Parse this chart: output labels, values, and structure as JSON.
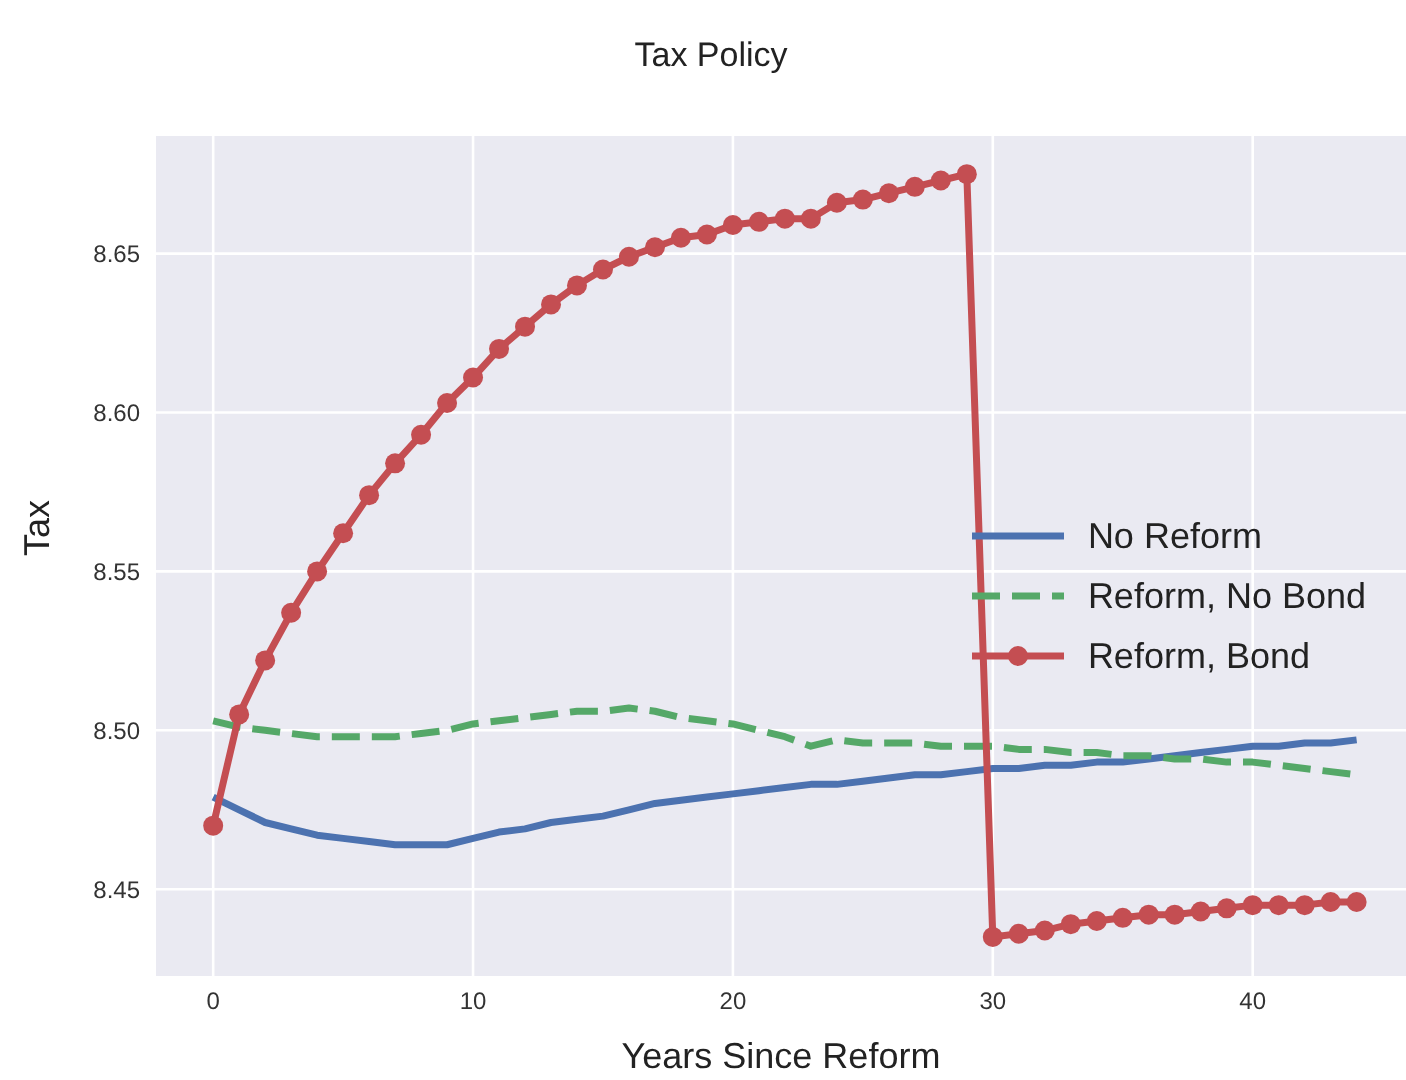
{
  "chart_data": {
    "type": "line",
    "title": "Tax Policy",
    "xlabel": "Years Since Reform",
    "ylabel": "Tax",
    "x": [
      0,
      1,
      2,
      3,
      4,
      5,
      6,
      7,
      8,
      9,
      10,
      11,
      12,
      13,
      14,
      15,
      16,
      17,
      18,
      19,
      20,
      21,
      22,
      23,
      24,
      25,
      26,
      27,
      28,
      29,
      30,
      31,
      32,
      33,
      34,
      35,
      36,
      37,
      38,
      39,
      40,
      41,
      42,
      43,
      44
    ],
    "series": [
      {
        "name": "No Reform",
        "color": "#4c72b0",
        "marker": "none",
        "line_style": "solid",
        "values": [
          8.479,
          8.475,
          8.471,
          8.469,
          8.467,
          8.466,
          8.465,
          8.464,
          8.464,
          8.464,
          8.466,
          8.468,
          8.469,
          8.471,
          8.472,
          8.473,
          8.475,
          8.477,
          8.478,
          8.479,
          8.48,
          8.481,
          8.482,
          8.483,
          8.483,
          8.484,
          8.485,
          8.486,
          8.486,
          8.487,
          8.488,
          8.488,
          8.489,
          8.489,
          8.49,
          8.49,
          8.491,
          8.492,
          8.493,
          8.494,
          8.495,
          8.495,
          8.496,
          8.496,
          8.497
        ]
      },
      {
        "name": "Reform, No Bond",
        "color": "#55a868",
        "marker": "none",
        "line_style": "dashed",
        "values": [
          8.503,
          8.501,
          8.5,
          8.499,
          8.498,
          8.498,
          8.498,
          8.498,
          8.499,
          8.5,
          8.502,
          8.503,
          8.504,
          8.505,
          8.506,
          8.506,
          8.507,
          8.506,
          8.504,
          8.503,
          8.502,
          8.5,
          8.498,
          8.495,
          8.497,
          8.496,
          8.496,
          8.496,
          8.495,
          8.495,
          8.495,
          8.494,
          8.494,
          8.493,
          8.493,
          8.492,
          8.492,
          8.491,
          8.491,
          8.49,
          8.49,
          8.489,
          8.488,
          8.487,
          8.486
        ]
      },
      {
        "name": "Reform, Bond",
        "color": "#c44e52",
        "marker": "circle",
        "line_style": "solid",
        "values": [
          8.47,
          8.505,
          8.522,
          8.537,
          8.55,
          8.562,
          8.574,
          8.584,
          8.593,
          8.603,
          8.611,
          8.62,
          8.627,
          8.634,
          8.64,
          8.645,
          8.649,
          8.652,
          8.655,
          8.656,
          8.659,
          8.66,
          8.661,
          8.661,
          8.666,
          8.667,
          8.669,
          8.671,
          8.673,
          8.675,
          8.435,
          8.436,
          8.437,
          8.439,
          8.44,
          8.441,
          8.442,
          8.442,
          8.443,
          8.444,
          8.445,
          8.445,
          8.445,
          8.446,
          8.446
        ]
      }
    ],
    "xlim": [
      -2.2,
      45.9
    ],
    "xticks": [
      0,
      10,
      20,
      30,
      40
    ],
    "ylim": [
      8.4227,
      8.687
    ],
    "yticks": [
      {
        "value": 8.45,
        "label": "8.45"
      },
      {
        "value": 8.5,
        "label": "8.50"
      },
      {
        "value": 8.55,
        "label": "8.55"
      },
      {
        "value": 8.6,
        "label": "8.60"
      },
      {
        "value": 8.65,
        "label": "8.65"
      }
    ],
    "grid": true,
    "legend": "right"
  }
}
